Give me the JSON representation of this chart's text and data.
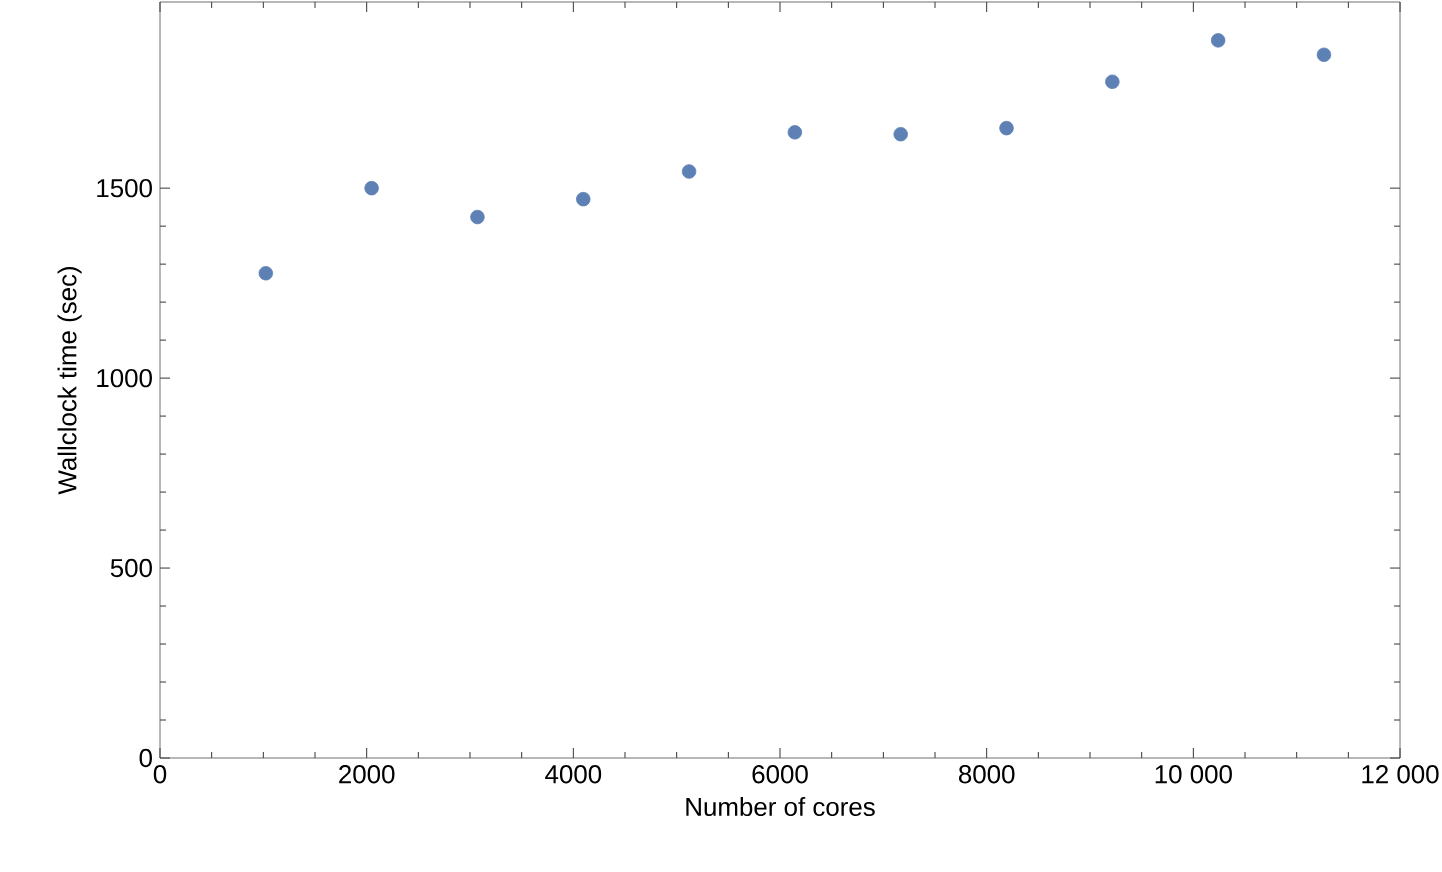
{
  "chart_data": {
    "type": "scatter",
    "xlabel": "Number of cores",
    "ylabel": "Wallclock time (sec)",
    "x": [
      1024,
      2048,
      3072,
      4096,
      5120,
      6144,
      7168,
      8192,
      9216,
      10240,
      11264
    ],
    "values": [
      1276,
      1500,
      1424,
      1471,
      1544,
      1647,
      1642,
      1658,
      1780,
      1889,
      1851
    ],
    "color": "#5e81b5",
    "grid": false,
    "xlim": [
      0,
      12000
    ],
    "xticks": [
      0,
      2000,
      4000,
      6000,
      8000,
      {
        "value": 10000,
        "label": "10 000"
      },
      {
        "value": 12000,
        "label": "12 000"
      }
    ],
    "ylim": [
      0,
      1990
    ],
    "yticks": [
      0,
      500,
      1000,
      1500
    ]
  }
}
